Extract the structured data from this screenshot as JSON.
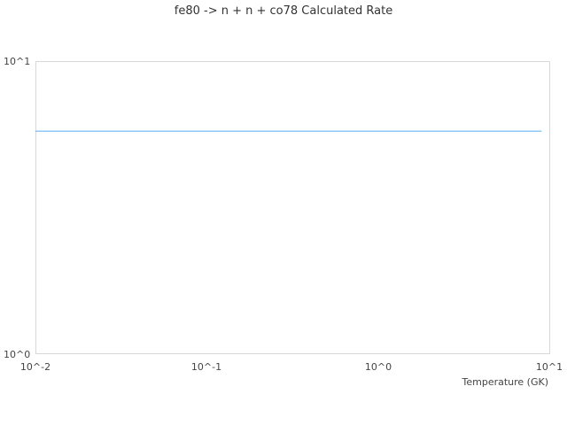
{
  "chart_data": {
    "type": "line",
    "title": "fe80 -> n + n + co78 Calculated Rate",
    "xlabel": "Temperature (GK)",
    "ylabel": "",
    "x_scale": "log",
    "y_scale": "log",
    "xlim": [
      0.01,
      10
    ],
    "ylim": [
      1,
      10
    ],
    "x_ticks": [
      "10^-2",
      "10^-1",
      "10^0",
      "10^1"
    ],
    "y_ticks": [
      "10^0",
      "10^1"
    ],
    "grid": false,
    "series": [
      {
        "color": "#5aaaf0",
        "x": [
          0.01,
          0.1,
          1,
          9
        ],
        "y": [
          5.76,
          5.76,
          5.76,
          5.76
        ]
      }
    ]
  }
}
